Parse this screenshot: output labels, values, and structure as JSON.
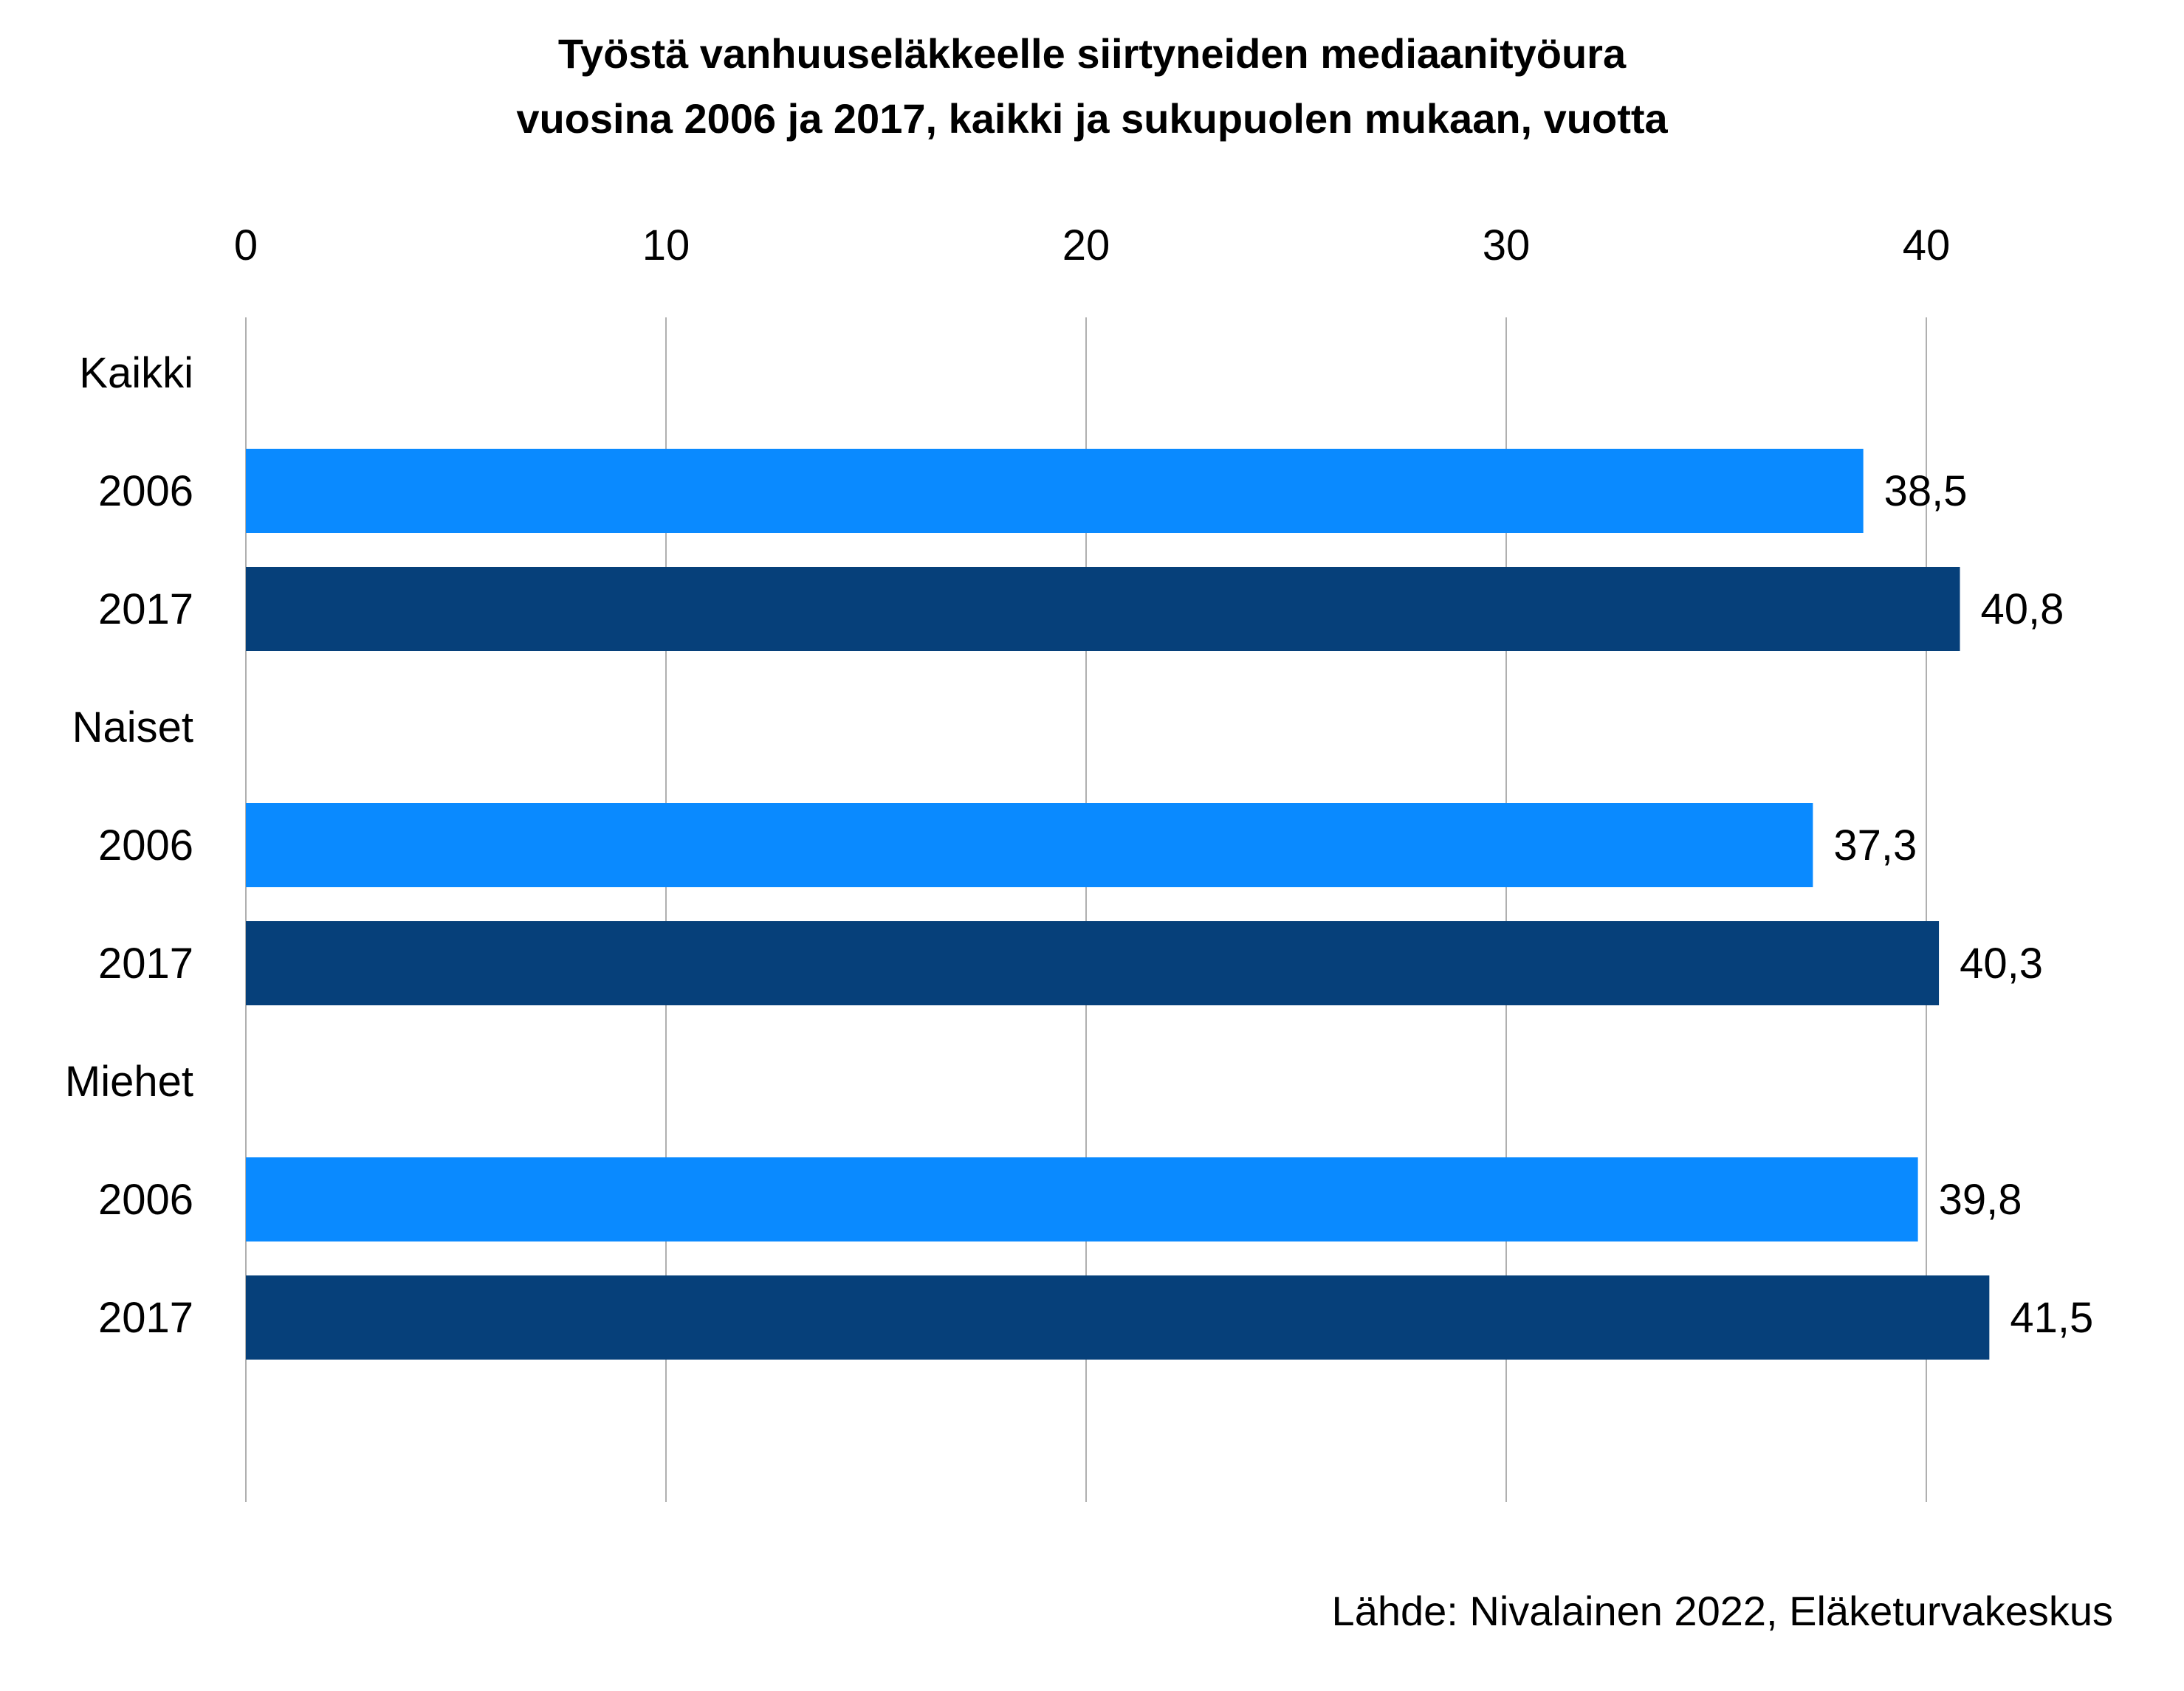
{
  "chart_data": {
    "type": "bar",
    "orientation": "horizontal",
    "title": "Työstä vanhuuseläkkeelle siirtyneiden mediaanityöura",
    "subtitle": "vuosina 2006 ja 2017, kaikki ja sukupuolen mukaan, vuotta",
    "x_ticks": [
      "0",
      "10",
      "20",
      "30",
      "40"
    ],
    "xlim": [
      0,
      44
    ],
    "x_axis_position": "top",
    "grid": "vertical",
    "groups": [
      {
        "label": "Kaikki",
        "bars": [
          {
            "label": "2006",
            "value": 38.5,
            "value_label": "38,5"
          },
          {
            "label": "2017",
            "value": 40.8,
            "value_label": "40,8"
          }
        ]
      },
      {
        "label": "Naiset",
        "bars": [
          {
            "label": "2006",
            "value": 37.3,
            "value_label": "37,3"
          },
          {
            "label": "2017",
            "value": 40.3,
            "value_label": "40,3"
          }
        ]
      },
      {
        "label": "Miehet",
        "bars": [
          {
            "label": "2006",
            "value": 39.8,
            "value_label": "39,8"
          },
          {
            "label": "2017",
            "value": 41.5,
            "value_label": "41,5"
          }
        ]
      }
    ],
    "colors": {
      "2006": "#0A8AFF",
      "2017": "#06407A"
    },
    "source": "Lähde: Nivalainen 2022, Eläketurvakeskus"
  }
}
